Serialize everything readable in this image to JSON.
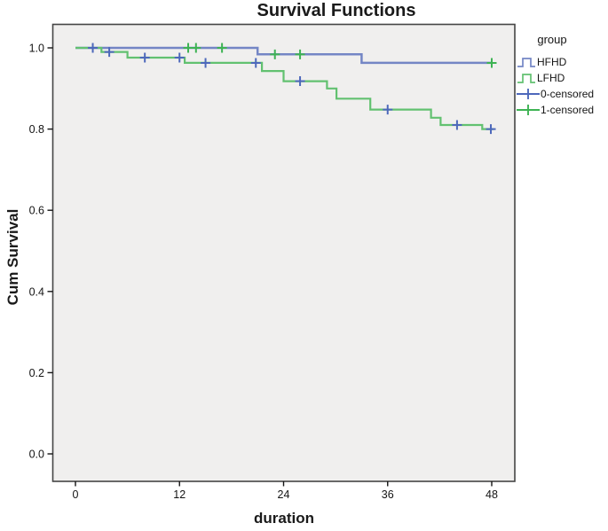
{
  "chart_data": {
    "type": "line",
    "subtype": "kaplan-meier-step",
    "title": "Survival Functions",
    "xlabel": "duration",
    "ylabel": "Cum Survival",
    "xlim": [
      -2.7,
      50.7
    ],
    "ylim": [
      -0.07,
      1.06
    ],
    "grid": false,
    "plot_bg": "#f0efee",
    "frame_color": "#454545",
    "tick_color": "#141414",
    "xticks": [
      {
        "v": 0,
        "label": "0"
      },
      {
        "v": 12,
        "label": "12"
      },
      {
        "v": 24,
        "label": "24"
      },
      {
        "v": 36,
        "label": "36"
      },
      {
        "v": 48,
        "label": "48"
      }
    ],
    "yticks": [
      {
        "v": 0.0,
        "label": "0.0"
      },
      {
        "v": 0.2,
        "label": "0.2"
      },
      {
        "v": 0.4,
        "label": "0.4"
      },
      {
        "v": 0.6,
        "label": "0.6"
      },
      {
        "v": 0.8,
        "label": "0.8"
      },
      {
        "v": 1.0,
        "label": "1.0"
      }
    ],
    "series": [
      {
        "name": "HFHD",
        "color": "#7486c5",
        "width": 2.5,
        "points": [
          [
            0,
            1.0
          ],
          [
            21,
            1.0
          ],
          [
            21,
            0.984
          ],
          [
            33,
            0.984
          ],
          [
            33,
            0.963
          ],
          [
            48,
            0.963
          ]
        ]
      },
      {
        "name": "LFHD",
        "color": "#62c170",
        "width": 2.2,
        "points": [
          [
            0,
            1.0
          ],
          [
            3,
            1.0
          ],
          [
            3,
            0.99
          ],
          [
            6,
            0.99
          ],
          [
            6,
            0.976
          ],
          [
            12.6,
            0.976
          ],
          [
            12.6,
            0.963
          ],
          [
            21.5,
            0.963
          ],
          [
            21.5,
            0.943
          ],
          [
            24,
            0.943
          ],
          [
            24,
            0.918
          ],
          [
            29,
            0.918
          ],
          [
            29,
            0.9
          ],
          [
            30.1,
            0.9
          ],
          [
            30.1,
            0.875
          ],
          [
            34,
            0.875
          ],
          [
            34,
            0.848
          ],
          [
            41,
            0.848
          ],
          [
            41,
            0.828
          ],
          [
            42.1,
            0.828
          ],
          [
            42.1,
            0.81
          ],
          [
            46.9,
            0.81
          ],
          [
            46.9,
            0.8
          ],
          [
            48.2,
            0.8
          ]
        ]
      }
    ],
    "censored": [
      {
        "name": "0-censored",
        "color": "#4d68bb",
        "points": [
          [
            2,
            1.0
          ],
          [
            3.9,
            0.99
          ],
          [
            8,
            0.976
          ],
          [
            12,
            0.976
          ],
          [
            15,
            0.963
          ],
          [
            20.8,
            0.963
          ],
          [
            25.9,
            0.918
          ],
          [
            36,
            0.848
          ],
          [
            44,
            0.81
          ],
          [
            47.9,
            0.8
          ]
        ]
      },
      {
        "name": "1-censored",
        "color": "#3eb353",
        "points": [
          [
            13,
            1.0
          ],
          [
            13.9,
            1.0
          ],
          [
            16.9,
            1.0
          ],
          [
            23,
            0.984
          ],
          [
            25.9,
            0.984
          ],
          [
            48,
            0.963
          ]
        ]
      }
    ],
    "legend": {
      "title": "group",
      "position": "right",
      "entries": [
        {
          "label": "HFHD",
          "type": "step-line",
          "color": "#7486c5"
        },
        {
          "label": "LFHD",
          "type": "step-line",
          "color": "#62c170"
        },
        {
          "label": "0-censored",
          "type": "plus",
          "color": "#4d68bb"
        },
        {
          "label": "1-censored",
          "type": "plus",
          "color": "#3eb353"
        }
      ]
    }
  }
}
